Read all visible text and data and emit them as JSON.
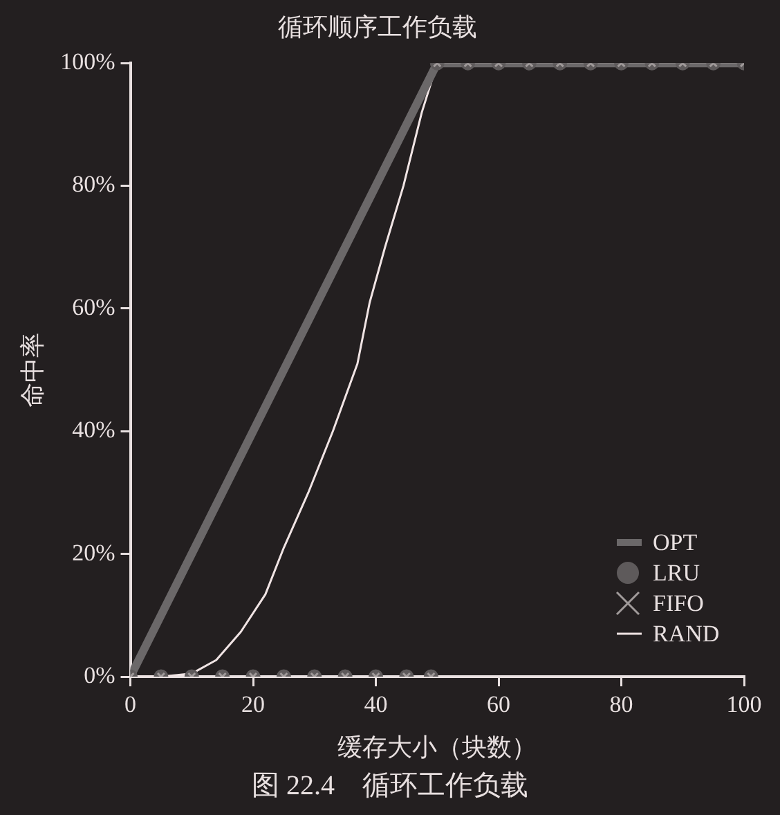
{
  "chart_data": {
    "type": "line",
    "title": "循环顺序工作负载",
    "xlabel": "缓存大小（块数）",
    "ylabel": "命中率",
    "annotations": [
      "图 22.4　循环工作负载"
    ],
    "x": [
      0,
      5,
      10,
      15,
      20,
      25,
      30,
      35,
      40,
      45,
      49,
      50,
      55,
      60,
      65,
      70,
      75,
      80,
      85,
      90,
      95,
      100
    ],
    "xlim": [
      0,
      100
    ],
    "xticks": [
      0,
      20,
      40,
      60,
      80,
      100
    ],
    "ylim": [
      0,
      100
    ],
    "yticks": [
      {
        "value": 0,
        "label": "0%"
      },
      {
        "value": 20,
        "label": "20%"
      },
      {
        "value": 40,
        "label": "40%"
      },
      {
        "value": 60,
        "label": "60%"
      },
      {
        "value": 80,
        "label": "80%"
      },
      {
        "value": 100,
        "label": "100%"
      }
    ],
    "grid": false,
    "legend": "bottom right",
    "series": [
      {
        "name": "OPT",
        "marker": "none",
        "color": "#6b6869",
        "x": [
          0,
          50,
          100
        ],
        "values": [
          0,
          100,
          100
        ]
      },
      {
        "name": "LRU",
        "type": "scatter",
        "marker": "circle",
        "color": "#5e5a5b",
        "values": [
          0,
          0,
          0,
          0,
          0,
          0,
          0,
          0,
          0,
          0,
          0,
          100,
          100,
          100,
          100,
          100,
          100,
          100,
          100,
          100,
          100,
          100
        ]
      },
      {
        "name": "FIFO",
        "type": "scatter",
        "marker": "cross",
        "color": "#a09a9a",
        "values": [
          0,
          0,
          0,
          0,
          0,
          0,
          0,
          0,
          0,
          0,
          0,
          100,
          100,
          100,
          100,
          100,
          100,
          100,
          100,
          100,
          100,
          100
        ]
      },
      {
        "name": "RAND",
        "marker": "none",
        "color": "#f0e4e4",
        "x": [
          0,
          5,
          10,
          14,
          18,
          22,
          25,
          29,
          33,
          37,
          39,
          41.5,
          44.5,
          47.5,
          50,
          100
        ],
        "values": [
          0,
          0,
          0.5,
          2.7,
          7.3,
          13.4,
          21,
          30,
          40,
          51,
          61,
          70,
          80,
          92,
          100,
          100
        ]
      }
    ]
  }
}
